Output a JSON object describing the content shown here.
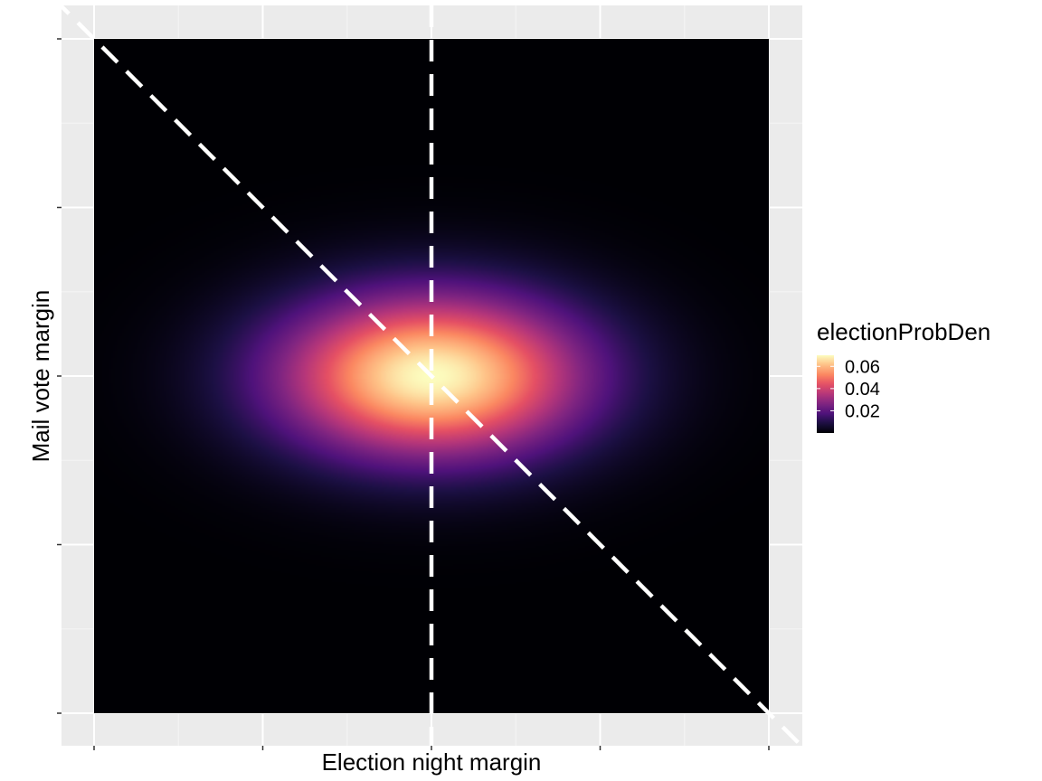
{
  "chart_data": {
    "type": "heatmap",
    "xlabel": "Election night margin",
    "ylabel": "Mail vote margin",
    "xlim": [
      -1,
      1
    ],
    "ylim": [
      -1,
      1
    ],
    "grid": true,
    "tick_labels_shown": false,
    "density": {
      "peak": 0.07,
      "center": [
        0,
        0
      ],
      "spread_x": 0.32,
      "spread_y": 0.17,
      "colormap": "magma"
    },
    "reference_lines": [
      {
        "name": "vertical",
        "style": "dashed",
        "color": "#ffffff",
        "x": 0
      },
      {
        "name": "diagonal",
        "style": "dashed",
        "color": "#ffffff",
        "slope": -1,
        "intercept": 0
      }
    ],
    "legend": {
      "title": "electionProbDen",
      "placement": "right",
      "ticks": [
        {
          "value": 0.06,
          "label": "0.06"
        },
        {
          "value": 0.04,
          "label": "0.04"
        },
        {
          "value": 0.02,
          "label": "0.02"
        }
      ],
      "range": [
        0.0,
        0.07
      ]
    },
    "colors": {
      "panel_background": "#ebebeb",
      "grid_major": "#ffffff",
      "grid_minor": "#f5f5f5"
    }
  }
}
